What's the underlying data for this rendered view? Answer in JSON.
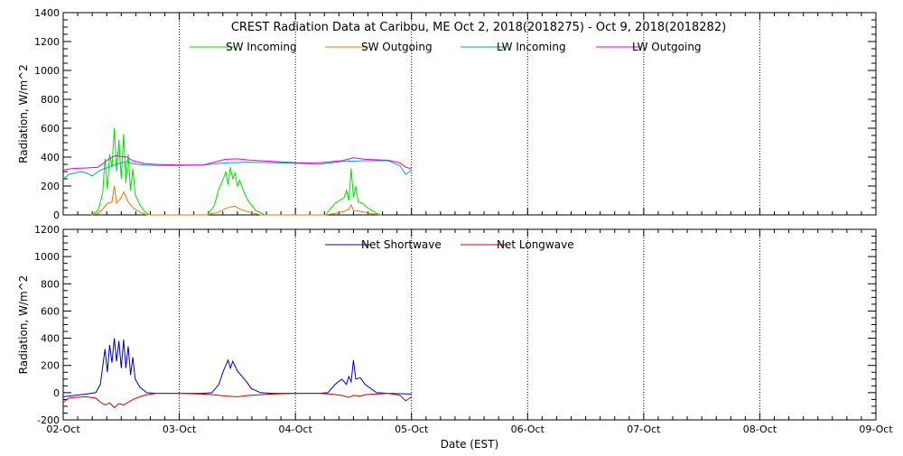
{
  "colors": {
    "background": "#ffffff",
    "axes": "#000000",
    "grid": "#000000",
    "sw_incoming": "#00dd00",
    "sw_outgoing": "#e07800",
    "lw_incoming": "#00a0c8",
    "lw_outgoing": "#e000e0",
    "net_shortwave": "#0000bb",
    "net_longwave": "#cc0000"
  },
  "chart_data": [
    {
      "type": "line",
      "title": "CREST Radiation Data at Caribou, ME   Oct  2, 2018(2018275) - Oct  9, 2018(2018282)",
      "xlabel": "",
      "ylabel": "Radiation, W/m^2",
      "x_unit": "days since 02-Oct (EST)",
      "xlim": [
        0,
        7
      ],
      "ylim": [
        0,
        1400
      ],
      "yticks": [
        0,
        200,
        400,
        600,
        800,
        1000,
        1200,
        1400
      ],
      "xticks": [
        0,
        1,
        2,
        3,
        4,
        5,
        6,
        7
      ],
      "xtick_labels": [
        "",
        "",
        "",
        "",
        "",
        "",
        "",
        ""
      ],
      "grid": true,
      "legend_position": "top",
      "series": [
        {
          "name": "SW Incoming",
          "color_key": "sw_incoming",
          "x": [
            0.24,
            0.3,
            0.34,
            0.36,
            0.38,
            0.4,
            0.42,
            0.44,
            0.46,
            0.48,
            0.5,
            0.52,
            0.54,
            0.56,
            0.58,
            0.6,
            0.62,
            0.66,
            0.7,
            0.74,
            1.24,
            1.3,
            1.34,
            1.38,
            1.4,
            1.42,
            1.44,
            1.46,
            1.48,
            1.5,
            1.52,
            1.56,
            1.6,
            1.66,
            1.74,
            2.26,
            2.3,
            2.34,
            2.38,
            2.42,
            2.44,
            2.46,
            2.48,
            2.5,
            2.52,
            2.54,
            2.58,
            2.62,
            2.66,
            2.7,
            2.74
          ],
          "y": [
            0,
            30,
            150,
            390,
            180,
            420,
            330,
            600,
            300,
            520,
            250,
            560,
            220,
            420,
            170,
            320,
            140,
            70,
            25,
            0,
            0,
            60,
            180,
            250,
            300,
            210,
            330,
            250,
            290,
            200,
            240,
            150,
            90,
            30,
            0,
            0,
            40,
            80,
            100,
            120,
            170,
            100,
            320,
            120,
            200,
            90,
            80,
            50,
            30,
            10,
            0
          ]
        },
        {
          "name": "SW Outgoing",
          "color_key": "sw_outgoing",
          "x": [
            0.24,
            0.3,
            0.34,
            0.38,
            0.42,
            0.44,
            0.46,
            0.5,
            0.52,
            0.56,
            0.6,
            0.66,
            0.72,
            1.24,
            1.34,
            1.4,
            1.44,
            1.48,
            1.52,
            1.6,
            1.7,
            2.26,
            2.34,
            2.42,
            2.46,
            2.48,
            2.5,
            2.56,
            2.66,
            2.74
          ],
          "y": [
            0,
            10,
            40,
            80,
            90,
            200,
            80,
            120,
            160,
            90,
            50,
            20,
            0,
            0,
            20,
            45,
            55,
            60,
            40,
            20,
            0,
            0,
            10,
            25,
            40,
            70,
            30,
            25,
            8,
            0
          ]
        },
        {
          "name": "LW Incoming",
          "color_key": "lw_incoming",
          "x": [
            0,
            0.05,
            0.1,
            0.15,
            0.2,
            0.25,
            0.3,
            0.35,
            0.4,
            0.45,
            0.5,
            0.55,
            0.6,
            0.7,
            0.8,
            1.0,
            1.2,
            1.4,
            1.6,
            1.8,
            2.0,
            2.2,
            2.4,
            2.6,
            2.8,
            2.9,
            2.95,
            3.0
          ],
          "y": [
            250,
            280,
            290,
            300,
            290,
            270,
            300,
            320,
            330,
            350,
            360,
            370,
            355,
            345,
            342,
            342,
            345,
            360,
            365,
            362,
            358,
            350,
            370,
            375,
            375,
            340,
            280,
            310
          ]
        },
        {
          "name": "LW Outgoing",
          "color_key": "lw_outgoing",
          "x": [
            0,
            0.05,
            0.1,
            0.2,
            0.3,
            0.35,
            0.4,
            0.45,
            0.5,
            0.55,
            0.6,
            0.7,
            0.8,
            1.0,
            1.2,
            1.3,
            1.4,
            1.5,
            1.6,
            1.8,
            2.0,
            2.2,
            2.4,
            2.5,
            2.6,
            2.8,
            2.9,
            2.95,
            3.0
          ],
          "y": [
            310,
            318,
            322,
            325,
            330,
            360,
            390,
            410,
            405,
            400,
            375,
            355,
            350,
            345,
            345,
            365,
            385,
            388,
            380,
            370,
            362,
            360,
            375,
            395,
            385,
            378,
            360,
            330,
            320
          ]
        }
      ]
    },
    {
      "type": "line",
      "title": "",
      "xlabel": "Date (EST)",
      "ylabel": "Radiation, W/m^2",
      "x_unit": "days since 02-Oct (EST)",
      "xlim": [
        0,
        7
      ],
      "ylim": [
        -200,
        1200
      ],
      "yticks": [
        -200,
        0,
        200,
        400,
        600,
        800,
        1000,
        1200
      ],
      "xticks": [
        0,
        1,
        2,
        3,
        4,
        5,
        6,
        7
      ],
      "xtick_labels": [
        "02-Oct",
        "03-Oct",
        "04-Oct",
        "05-Oct",
        "06-Oct",
        "07-Oct",
        "08-Oct",
        "09-Oct"
      ],
      "grid": true,
      "legend_position": "top",
      "series": [
        {
          "name": "Net Shortwave",
          "color_key": "net_shortwave",
          "x": [
            0,
            0.1,
            0.2,
            0.28,
            0.32,
            0.36,
            0.38,
            0.4,
            0.42,
            0.44,
            0.46,
            0.48,
            0.5,
            0.52,
            0.54,
            0.56,
            0.58,
            0.6,
            0.62,
            0.66,
            0.72,
            0.8,
            1.0,
            1.2,
            1.28,
            1.34,
            1.38,
            1.42,
            1.44,
            1.46,
            1.5,
            1.54,
            1.58,
            1.62,
            1.7,
            1.8,
            2.0,
            2.2,
            2.28,
            2.34,
            2.4,
            2.44,
            2.46,
            2.48,
            2.5,
            2.52,
            2.56,
            2.6,
            2.7,
            2.8,
            3.0
          ],
          "y": [
            -30,
            -20,
            -10,
            0,
            60,
            320,
            150,
            350,
            220,
            400,
            230,
            380,
            180,
            390,
            180,
            340,
            130,
            260,
            100,
            40,
            0,
            -5,
            -5,
            -5,
            0,
            60,
            160,
            240,
            180,
            230,
            160,
            120,
            80,
            30,
            0,
            -5,
            -5,
            -5,
            0,
            60,
            100,
            60,
            120,
            80,
            240,
            100,
            110,
            60,
            0,
            -5,
            -10
          ]
        },
        {
          "name": "Net Longwave",
          "color_key": "net_longwave",
          "x": [
            0,
            0.05,
            0.1,
            0.2,
            0.28,
            0.32,
            0.36,
            0.4,
            0.44,
            0.48,
            0.52,
            0.56,
            0.6,
            0.66,
            0.72,
            0.8,
            1.0,
            1.2,
            1.3,
            1.4,
            1.5,
            1.6,
            1.7,
            1.8,
            2.0,
            2.2,
            2.3,
            2.4,
            2.46,
            2.5,
            2.56,
            2.6,
            2.7,
            2.8,
            2.9,
            2.95,
            3.0
          ],
          "y": [
            -70,
            -40,
            -35,
            -30,
            -40,
            -70,
            -90,
            -75,
            -110,
            -80,
            -90,
            -70,
            -50,
            -30,
            -15,
            -5,
            -5,
            -10,
            -15,
            -25,
            -30,
            -20,
            -15,
            -10,
            -5,
            -5,
            -10,
            -20,
            -35,
            -20,
            -25,
            -15,
            -10,
            -5,
            -20,
            -60,
            -30
          ]
        }
      ]
    }
  ]
}
